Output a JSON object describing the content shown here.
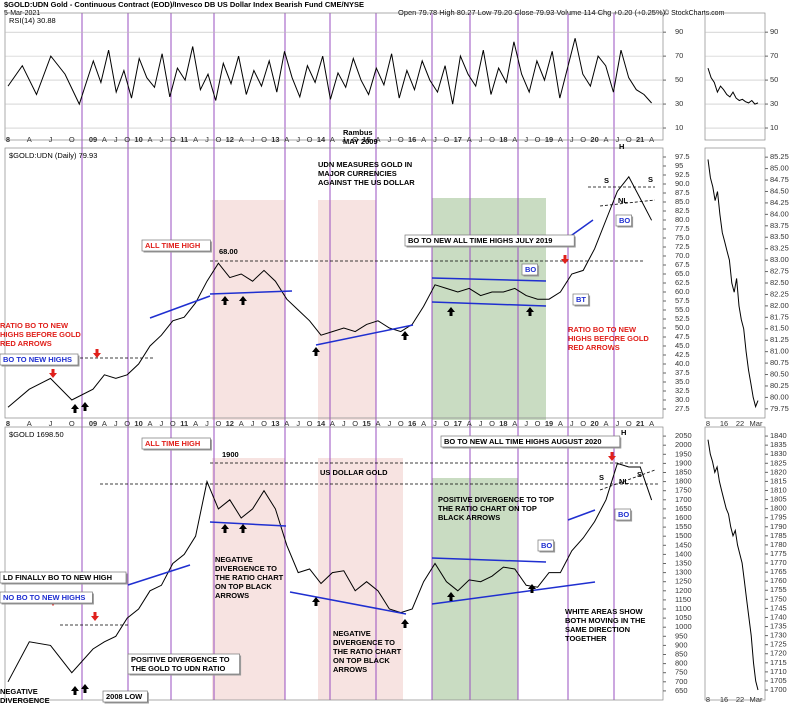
{
  "header": {
    "title": "$GOLD:UDN Gold - Continuous Contract (EOD)/Invesco DB US Dollar Index Bearish Fund CME/NYSE",
    "date": "5-Mar-2021",
    "quote": "Open 79.78 High 80.27 Low 79.20 Close 79.93 Volume 114 Chg +0.20 (+0.25%)",
    "copyright": "© StockCharts.com"
  },
  "chart_data": [
    {
      "type": "line",
      "ylim": [
        0,
        106
      ],
      "yticks": [
        90,
        70,
        50,
        30,
        10
      ],
      "series": [
        {
          "name": "RSI(14) 30.88",
          "color": "#000000",
          "values": [
            45,
            62,
            38,
            70,
            55,
            30,
            66,
            48,
            75,
            40,
            58,
            35,
            68,
            52,
            44,
            72,
            36,
            60,
            50,
            78,
            42,
            55,
            33,
            64,
            47,
            70,
            38,
            58,
            45,
            66,
            40,
            74,
            52,
            36,
            62,
            48,
            70,
            34,
            56,
            44,
            68,
            50,
            38,
            60,
            46,
            72,
            35,
            58,
            42,
            66,
            50,
            40,
            62,
            30,
            70,
            55,
            45,
            75,
            38,
            60,
            48,
            82,
            55,
            40,
            66,
            50,
            74,
            35,
            60,
            85,
            55,
            45,
            70,
            62,
            40,
            75,
            52,
            42,
            38,
            30.88
          ]
        }
      ]
    },
    {
      "type": "line",
      "ylim": [
        25,
        100
      ],
      "yticks": [
        97.5,
        95,
        92.5,
        {
          "value": 90,
          "label": "90.0"
        },
        87.5,
        {
          "value": 85,
          "label": "85.0"
        },
        82.5,
        {
          "value": 80,
          "label": "80.0"
        },
        77.5,
        {
          "value": 75,
          "label": "75.0"
        },
        72.5,
        {
          "value": 70,
          "label": "70.0"
        },
        67.5,
        {
          "value": 65,
          "label": "65.0"
        },
        62.5,
        {
          "value": 60,
          "label": "60.0"
        },
        57.5,
        {
          "value": 55,
          "label": "55.0"
        },
        52.5,
        {
          "value": 50,
          "label": "50.0"
        },
        47.5,
        {
          "value": 45,
          "label": "45.0"
        },
        42.5,
        {
          "value": 40,
          "label": "40.0"
        },
        37.5,
        {
          "value": 35,
          "label": "35.0"
        },
        32.5,
        {
          "value": 30,
          "label": "30.0"
        },
        27.5
      ],
      "series": [
        {
          "name": "$GOLD:UDN (Daily) 79.93",
          "color": "#000000",
          "values": [
            28,
            33,
            36,
            30,
            33,
            37,
            36,
            37,
            40,
            45,
            48,
            52,
            53,
            57,
            63,
            68,
            64,
            65,
            63,
            66,
            63,
            58,
            55,
            52,
            48,
            49,
            50,
            49,
            51,
            52,
            50,
            49,
            51,
            56,
            62,
            61,
            60,
            61,
            59,
            60,
            60,
            61,
            59,
            58,
            58,
            60,
            65,
            66,
            72,
            80,
            88,
            92,
            86,
            79.93
          ]
        }
      ]
    },
    {
      "type": "line",
      "ylim": [
        600,
        2100
      ],
      "yticks": [
        2050,
        2000,
        1950,
        1900,
        1850,
        1800,
        1750,
        1700,
        1650,
        1600,
        1550,
        1500,
        1450,
        1400,
        1350,
        1300,
        1250,
        1200,
        1150,
        1100,
        1050,
        1000,
        950,
        900,
        850,
        800,
        750,
        700,
        650
      ],
      "series": [
        {
          "name": "$GOLD 1698.50",
          "color": "#000000",
          "values": [
            700,
            920,
            900,
            750,
            880,
            920,
            950,
            1050,
            1100,
            1200,
            1230,
            1350,
            1400,
            1500,
            1800,
            1650,
            1700,
            1600,
            1650,
            1750,
            1650,
            1450,
            1300,
            1320,
            1240,
            1300,
            1310,
            1200,
            1250,
            1200,
            1100,
            1080,
            1100,
            1250,
            1350,
            1250,
            1200,
            1260,
            1250,
            1280,
            1330,
            1320,
            1230,
            1220,
            1300,
            1300,
            1420,
            1490,
            1580,
            1700,
            1900,
            1880,
            1880,
            1698.5
          ]
        }
      ]
    },
    {
      "type": "line",
      "ylim": [
        0,
        106
      ],
      "yticks": [
        90,
        70,
        50,
        30,
        10
      ],
      "color": "#000000",
      "values": [
        60,
        52,
        48,
        40,
        45,
        42,
        38,
        36,
        40,
        35,
        33,
        34,
        32,
        31,
        33,
        30,
        31
      ]
    },
    {
      "type": "line",
      "ylim": [
        79.55,
        85.45
      ],
      "yticks": [
        85.25,
        {
          "value": 85,
          "label": "85.00"
        },
        84.75,
        {
          "value": 84.5,
          "label": "84.50"
        },
        84.25,
        {
          "value": 84,
          "label": "84.00"
        },
        83.75,
        {
          "value": 83.5,
          "label": "83.50"
        },
        83.25,
        {
          "value": 83,
          "label": "83.00"
        },
        82.75,
        {
          "value": 82.5,
          "label": "82.50"
        },
        82.25,
        {
          "value": 82,
          "label": "82.00"
        },
        81.75,
        {
          "value": 81.5,
          "label": "81.50"
        },
        81.25,
        {
          "value": 81,
          "label": "81.00"
        },
        80.75,
        {
          "value": 80.5,
          "label": "80.50"
        },
        80.25,
        {
          "value": 80,
          "label": "80.00"
        },
        79.75
      ],
      "color": "#000000",
      "values": [
        85.2,
        84.8,
        84.6,
        84.3,
        84.5,
        84.0,
        83.6,
        83.4,
        83.2,
        83.0,
        82.5,
        82.3,
        82.6,
        82.0,
        81.7,
        81.5,
        81.0,
        80.6,
        80.3,
        80.0,
        79.8,
        79.93
      ]
    },
    {
      "type": "line",
      "ylim": [
        1694.5,
        1845
      ],
      "yticks": [
        1840,
        1835,
        1830,
        1825,
        1820,
        1815,
        1810,
        1805,
        1800,
        1795,
        1790,
        1785,
        1780,
        1775,
        1770,
        1765,
        1760,
        1755,
        1750,
        1745,
        1740,
        1735,
        1730,
        1725,
        1720,
        1715,
        1710,
        1705,
        1700
      ],
      "color": "#000000",
      "values": [
        1838,
        1830,
        1826,
        1820,
        1823,
        1815,
        1810,
        1805,
        1800,
        1797,
        1790,
        1785,
        1788,
        1780,
        1775,
        1770,
        1760,
        1750,
        1740,
        1730,
        1715,
        1705,
        1700
      ]
    }
  ],
  "x_axis_labels": [
    "8",
    "A",
    "J",
    "O",
    "09",
    "A",
    "J",
    "O",
    "10",
    "A",
    "J",
    "O",
    "11",
    "A",
    "J",
    "O",
    "12",
    "A",
    "J",
    "O",
    "13",
    "A",
    "J",
    "O",
    "14",
    "A",
    "J",
    "O",
    "15",
    "A",
    "J",
    "O",
    "16",
    "A",
    "J",
    "O",
    "17",
    "A",
    "J",
    "O",
    "18",
    "A",
    "J",
    "O",
    "19",
    "A",
    "J",
    "O",
    "20",
    "A",
    "J",
    "O",
    "21",
    "A"
  ],
  "x_axis_labels_small": [
    "8",
    "16",
    "22",
    "Mar"
  ],
  "annotations": [
    {
      "lines": [
        "Rambus",
        "MAY 2009"
      ]
    },
    {
      "lines": [
        "UDN MEASURES GOLD IN",
        "MAJOR CURRENCIES",
        "AGAINST THE US DOLLAR"
      ]
    },
    {
      "lines": [
        "ALL TIME HIGH"
      ]
    },
    {
      "lines": [
        "68.00"
      ]
    },
    {
      "lines": [
        "RATIO BO TO NEW",
        "HIGHS BEFORE GOLD",
        "RED ARROWS"
      ]
    },
    {
      "lines": [
        "BO TO NEW HIGHS"
      ]
    },
    {
      "lines": [
        "BO TO NEW ALL TIME HIGHS JULY 2019"
      ]
    },
    {
      "lines": [
        "BO"
      ]
    },
    {
      "lines": [
        "BT"
      ]
    },
    {
      "lines": [
        "RATIO BO TO NEW",
        "HIGHS BEFORE GOLD",
        "RED ARROWS"
      ]
    },
    {
      "lines": [
        "H"
      ]
    },
    {
      "lines": [
        "S"
      ]
    },
    {
      "lines": [
        "S"
      ]
    },
    {
      "lines": [
        "NL"
      ]
    },
    {
      "lines": [
        "BO"
      ]
    },
    {
      "lines": [
        "ALL TIME HIGH"
      ]
    },
    {
      "lines": [
        "1900"
      ]
    },
    {
      "lines": [
        "US DOLLAR GOLD"
      ]
    },
    {
      "lines": [
        "BO TO NEW ALL TIME HIGHS AUGUST 2020"
      ]
    },
    {
      "lines": [
        "H"
      ]
    },
    {
      "lines": [
        "S"
      ]
    },
    {
      "lines": [
        "S"
      ]
    },
    {
      "lines": [
        "NL"
      ]
    },
    {
      "lines": [
        "BO"
      ]
    },
    {
      "lines": [
        "BO"
      ]
    },
    {
      "lines": [
        "POSITIVE DIVERGENCE TO TOP",
        "THE RATIO CHART ON TOP",
        "BLACK ARROWS"
      ]
    },
    {
      "lines": [
        "NEGATIVE",
        "DIVERGENCE TO",
        "THE RATIO CHART",
        "ON TOP BLACK",
        "ARROWS"
      ]
    },
    {
      "lines": [
        "NEGATIVE",
        "DIVERGENCE TO",
        "THE RATIO CHART",
        "ON TOP BLACK",
        "ARROWS"
      ]
    },
    {
      "lines": [
        "WHITE AREAS SHOW",
        "BOTH MOVING IN THE",
        "SAME DIRECTION",
        "TOGETHER"
      ]
    },
    {
      "lines": [
        "LD FINALLY BO TO NEW HIGH"
      ]
    },
    {
      "lines": [
        "NO BO TO NEW HIGHS"
      ]
    },
    {
      "lines": [
        "POSITIVE DIVERGENCE TO",
        "THE GOLD TO UDN RATIO"
      ]
    },
    {
      "lines": [
        "NEGATIVE",
        "DIVERGENCE"
      ]
    },
    {
      "lines": [
        "2008 LOW"
      ]
    }
  ]
}
